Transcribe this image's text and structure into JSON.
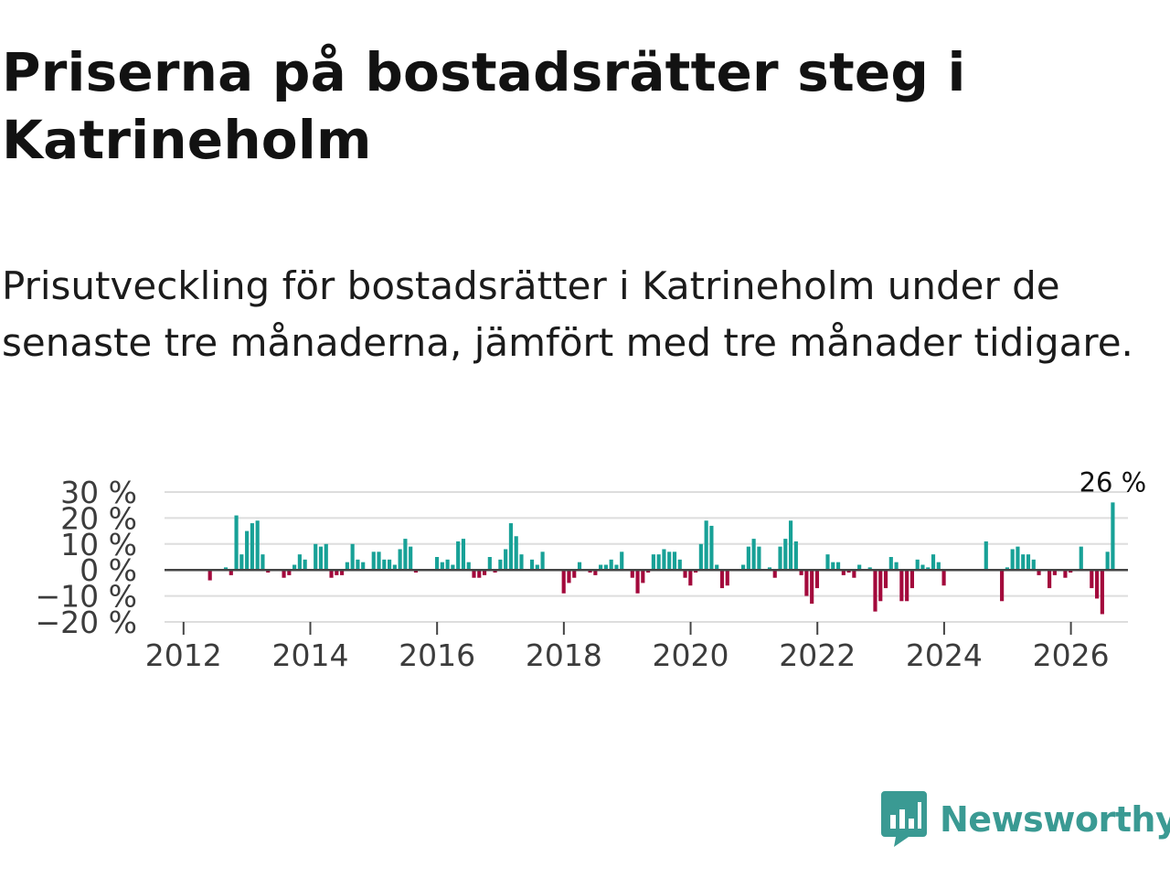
{
  "title": "Priserna på bostadsrätter steg i Katrineholm",
  "subtitle": "Prisutveckling för bostadsrätter i Katrineholm under de senaste tre månaderna, jämfört med tre månader tidigare.",
  "brand": {
    "name": "Newsworthy"
  },
  "colors": {
    "positive": "#18a197",
    "negative": "#a3093c",
    "grid": "#dddddd",
    "zero": "#444444",
    "brand": "#3a9a93"
  },
  "chart_data": {
    "type": "bar",
    "title": "Priserna på bostadsrätter steg i Katrineholm",
    "xlabel": "",
    "ylabel": "",
    "ylim": [
      -20,
      30
    ],
    "xlim": [
      2011.7,
      2026.9
    ],
    "y_ticks": [
      30,
      20,
      10,
      0,
      -10,
      -20
    ],
    "y_tick_labels": [
      "30 %",
      "20 %",
      "10 %",
      "0 %",
      "−10 %",
      "−20 %"
    ],
    "x_ticks": [
      2012,
      2014,
      2016,
      2018,
      2020,
      2022,
      2024,
      2026
    ],
    "x_tick_labels": [
      "2012",
      "2014",
      "2016",
      "2018",
      "2020",
      "2022",
      "2024",
      "2026"
    ],
    "last_label": "26 %",
    "start": 2012.0,
    "step": 0.0833,
    "values": [
      0,
      0,
      0,
      0,
      0,
      -4,
      0,
      0,
      1,
      -2,
      21,
      6,
      15,
      18,
      19,
      6,
      -1,
      0,
      0,
      -3,
      -2,
      2,
      6,
      4,
      0,
      10,
      9,
      10,
      -3,
      -2,
      -2,
      3,
      10,
      4,
      3,
      0,
      7,
      7,
      4,
      4,
      2,
      8,
      12,
      9,
      -1,
      0,
      0,
      0,
      5,
      3,
      4,
      2,
      11,
      12,
      3,
      -3,
      -3,
      -2,
      5,
      -1,
      4,
      8,
      18,
      13,
      6,
      0,
      4,
      2,
      7,
      0,
      0,
      0,
      -9,
      -5,
      -3,
      3,
      0,
      -1,
      -2,
      2,
      2,
      4,
      2,
      7,
      0,
      -3,
      -9,
      -5,
      -1,
      6,
      6,
      8,
      7,
      7,
      4,
      -3,
      -6,
      -1,
      10,
      19,
      17,
      2,
      -7,
      -6,
      0,
      0,
      2,
      9,
      12,
      9,
      0,
      1,
      -3,
      9,
      12,
      19,
      11,
      -2,
      -10,
      -13,
      -7,
      0,
      6,
      3,
      3,
      -2,
      -1,
      -3,
      2,
      0,
      1,
      -16,
      -12,
      -7,
      5,
      3,
      -12,
      -12,
      -7,
      4,
      2,
      1,
      6,
      3,
      -6,
      0,
      0,
      0,
      0,
      0,
      0,
      0,
      11,
      0,
      0,
      -12,
      1,
      8,
      9,
      6,
      6,
      4,
      -2,
      0,
      -7,
      -2,
      0,
      -3,
      -1,
      0,
      9,
      0,
      -7,
      -11,
      -17,
      7,
      26
    ]
  }
}
